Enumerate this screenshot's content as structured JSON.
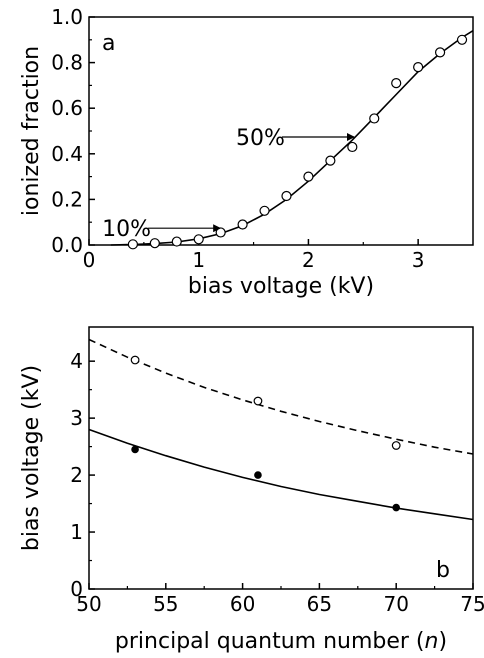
{
  "chart_data": [
    {
      "panel_label": "a",
      "type": "scatter",
      "xlabel": "bias voltage (kV)",
      "ylabel": "ionized fraction",
      "xlim": [
        0,
        3.5
      ],
      "ylim": [
        0,
        1.0
      ],
      "xticks": [
        0,
        1,
        2,
        3
      ],
      "xtick_labels": [
        "0",
        "1",
        "2",
        "3"
      ],
      "yticks": [
        0.0,
        0.2,
        0.4,
        0.6,
        0.8,
        1.0
      ],
      "ytick_labels": [
        "0.0",
        "0.2",
        "0.4",
        "0.6",
        "0.8",
        "1.0"
      ],
      "grid": false,
      "series": [
        {
          "kind": "points",
          "marker": "open-circle",
          "x": [
            0.4,
            0.6,
            0.8,
            1.0,
            1.2,
            1.4,
            1.6,
            1.8,
            2.0,
            2.2,
            2.4,
            2.6,
            2.8,
            3.0,
            3.2,
            3.4
          ],
          "y": [
            0.003,
            0.008,
            0.015,
            0.025,
            0.055,
            0.09,
            0.15,
            0.215,
            0.3,
            0.37,
            0.43,
            0.555,
            0.71,
            0.78,
            0.845,
            0.9
          ]
        },
        {
          "kind": "line",
          "style": "solid",
          "x": [
            0.2,
            0.4,
            0.6,
            0.8,
            1.0,
            1.2,
            1.4,
            1.6,
            1.8,
            2.0,
            2.2,
            2.4,
            2.6,
            2.8,
            3.0,
            3.2,
            3.4,
            3.5
          ],
          "y": [
            0.0,
            0.002,
            0.006,
            0.013,
            0.027,
            0.05,
            0.085,
            0.135,
            0.2,
            0.28,
            0.37,
            0.46,
            0.56,
            0.66,
            0.76,
            0.84,
            0.91,
            0.94
          ]
        }
      ],
      "annotations": [
        {
          "text": "10%",
          "x": 1.25,
          "y": 0.1
        },
        {
          "text": "50%",
          "x": 2.47,
          "y": 0.5
        }
      ]
    },
    {
      "panel_label": "b",
      "type": "scatter",
      "xlabel": "principal quantum number (n)",
      "ylabel": "bias voltage (kV)",
      "xlim": [
        50,
        75
      ],
      "ylim": [
        0,
        4.6
      ],
      "xticks": [
        50,
        55,
        60,
        65,
        70,
        75
      ],
      "xtick_labels": [
        "50",
        "55",
        "60",
        "65",
        "70",
        "75"
      ],
      "yticks": [
        0,
        1,
        2,
        3,
        4
      ],
      "ytick_labels": [
        "0",
        "1",
        "2",
        "3",
        "4"
      ],
      "grid": false,
      "series": [
        {
          "kind": "points",
          "marker": "open-circle",
          "x": [
            53,
            61,
            70
          ],
          "y": [
            4.02,
            3.3,
            2.52
          ]
        },
        {
          "kind": "points",
          "marker": "filled-circle",
          "x": [
            53,
            61,
            70
          ],
          "y": [
            2.45,
            2.0,
            1.43
          ]
        },
        {
          "kind": "line",
          "style": "dashed",
          "x": [
            50,
            52.5,
            55,
            57.5,
            60,
            62.5,
            65,
            67.5,
            70,
            72.5,
            75
          ],
          "y": [
            4.38,
            4.07,
            3.79,
            3.54,
            3.32,
            3.12,
            2.94,
            2.78,
            2.63,
            2.49,
            2.37
          ]
        },
        {
          "kind": "line",
          "style": "solid",
          "x": [
            50,
            52.5,
            55,
            57.5,
            60,
            62.5,
            65,
            67.5,
            70,
            72.5,
            75
          ],
          "y": [
            2.8,
            2.56,
            2.34,
            2.14,
            1.96,
            1.8,
            1.66,
            1.54,
            1.42,
            1.32,
            1.22
          ]
        }
      ]
    }
  ]
}
